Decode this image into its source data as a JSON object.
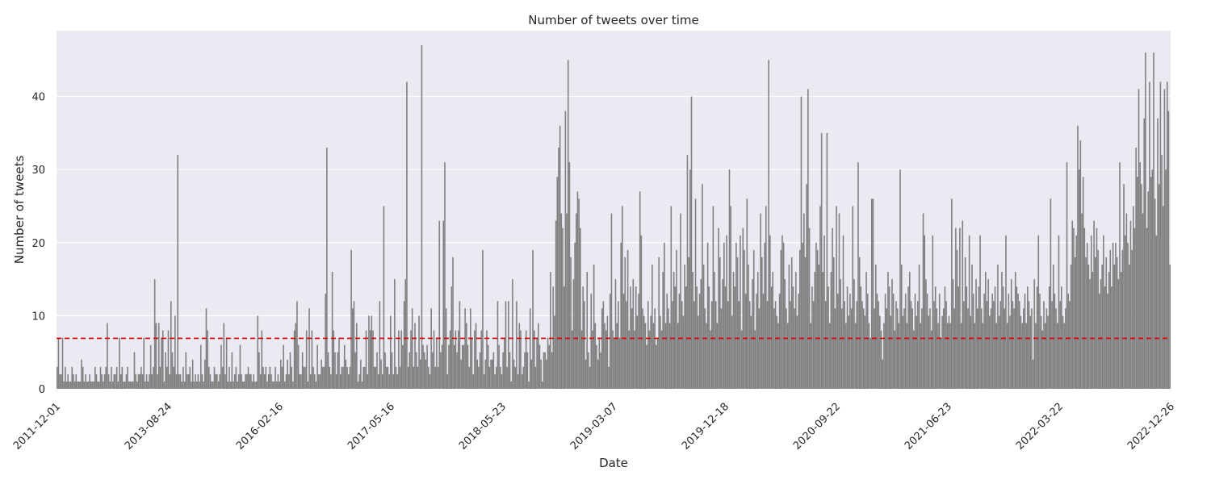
{
  "chart_data": {
    "type": "bar",
    "title": "Number of tweets over time",
    "xlabel": "Date",
    "ylabel": "Number of tweets",
    "ylim": [
      0,
      49
    ],
    "yticks": [
      0,
      10,
      20,
      30,
      40
    ],
    "grid": true,
    "categorical_x": true,
    "x_tick_labels": [
      "2011-12-01",
      "2013-08-24",
      "2016-02-16",
      "2017-05-16",
      "2018-05-23",
      "2019-03-07",
      "2019-12-18",
      "2020-09-22",
      "2021-06-23",
      "2022-03-22",
      "2022-12-26"
    ],
    "reference_line": {
      "y": 6.9,
      "style": "dashed",
      "color": "#e00000"
    },
    "bar_color": "#808080",
    "background_color": "#eaeaf2",
    "series": [
      {
        "values": [
          3,
          7,
          2,
          2,
          7,
          1,
          3,
          1,
          2,
          1,
          1,
          3,
          2,
          1,
          2,
          1,
          1,
          1,
          4,
          3,
          1,
          2,
          1,
          1,
          2,
          1,
          1,
          1,
          3,
          2,
          1,
          1,
          3,
          2,
          1,
          2,
          3,
          9,
          2,
          1,
          3,
          1,
          2,
          2,
          3,
          1,
          7,
          2,
          3,
          1,
          1,
          2,
          3,
          1,
          1,
          1,
          1,
          5,
          2,
          1,
          2,
          2,
          3,
          2,
          7,
          1,
          2,
          1,
          2,
          6,
          2,
          3,
          15,
          9,
          2,
          9,
          3,
          7,
          8,
          1,
          5,
          3,
          8,
          2,
          12,
          5,
          3,
          10,
          2,
          32,
          2,
          2,
          1,
          3,
          1,
          5,
          2,
          2,
          3,
          1,
          4,
          1,
          2,
          1,
          2,
          1,
          6,
          2,
          1,
          4,
          11,
          8,
          3,
          2,
          1,
          1,
          3,
          2,
          2,
          1,
          2,
          6,
          3,
          9,
          2,
          7,
          1,
          3,
          1,
          5,
          1,
          2,
          3,
          1,
          2,
          6,
          2,
          1,
          1,
          2,
          2,
          3,
          2,
          2,
          1,
          2,
          1,
          1,
          10,
          5,
          2,
          8,
          3,
          2,
          3,
          1,
          2,
          3,
          2,
          1,
          1,
          3,
          1,
          2,
          1,
          4,
          3,
          6,
          1,
          2,
          4,
          2,
          5,
          3,
          1,
          8,
          9,
          12,
          6,
          2,
          2,
          5,
          3,
          3,
          8,
          1,
          11,
          2,
          8,
          3,
          2,
          1,
          6,
          2,
          2,
          4,
          3,
          3,
          13,
          33,
          5,
          3,
          2,
          16,
          8,
          5,
          2,
          5,
          7,
          2,
          3,
          3,
          6,
          4,
          3,
          2,
          3,
          19,
          11,
          12,
          5,
          9,
          1,
          2,
          4,
          1,
          3,
          3,
          8,
          2,
          10,
          8,
          10,
          8,
          3,
          3,
          5,
          2,
          12,
          4,
          2,
          25,
          5,
          3,
          3,
          2,
          10,
          5,
          2,
          15,
          3,
          2,
          8,
          3,
          8,
          6,
          12,
          15,
          42,
          3,
          5,
          8,
          11,
          3,
          9,
          5,
          3,
          10,
          4,
          47,
          6,
          5,
          4,
          6,
          3,
          2,
          11,
          5,
          8,
          3,
          7,
          3,
          23,
          5,
          6,
          23,
          31,
          11,
          2,
          6,
          8,
          14,
          18,
          6,
          8,
          5,
          8,
          12,
          4,
          6,
          6,
          11,
          9,
          6,
          3,
          11,
          7,
          2,
          8,
          9,
          4,
          3,
          5,
          8,
          19,
          2,
          4,
          8,
          6,
          3,
          4,
          4,
          5,
          2,
          3,
          12,
          6,
          3,
          2,
          5,
          7,
          12,
          3,
          12,
          5,
          1,
          15,
          4,
          3,
          12,
          2,
          9,
          8,
          2,
          3,
          5,
          8,
          5,
          1,
          11,
          4,
          19,
          8,
          3,
          7,
          9,
          6,
          4,
          1,
          5,
          5,
          4,
          7,
          6,
          16,
          5,
          14,
          10,
          23,
          29,
          33,
          36,
          24,
          22,
          14,
          38,
          24,
          45,
          31,
          18,
          8,
          15,
          20,
          24,
          27,
          26,
          22,
          8,
          14,
          12,
          4,
          16,
          5,
          3,
          13,
          8,
          17,
          9,
          6,
          4,
          7,
          5,
          11,
          12,
          9,
          8,
          10,
          3,
          13,
          24,
          8,
          7,
          15,
          9,
          12,
          7,
          20,
          25,
          13,
          18,
          12,
          19,
          8,
          14,
          11,
          15,
          8,
          14,
          10,
          13,
          27,
          21,
          11,
          10,
          9,
          6,
          12,
          8,
          10,
          17,
          9,
          11,
          6,
          7,
          18,
          10,
          8,
          16,
          20,
          9,
          13,
          11,
          9,
          25,
          12,
          16,
          14,
          19,
          9,
          13,
          24,
          12,
          10,
          17,
          14,
          32,
          18,
          30,
          40,
          16,
          12,
          26,
          14,
          10,
          13,
          15,
          28,
          17,
          11,
          9,
          20,
          14,
          8,
          12,
          25,
          16,
          12,
          9,
          22,
          18,
          11,
          15,
          20,
          14,
          21,
          12,
          30,
          25,
          10,
          16,
          14,
          20,
          18,
          12,
          21,
          8,
          22,
          19,
          13,
          26,
          17,
          12,
          10,
          15,
          19,
          8,
          13,
          16,
          11,
          24,
          18,
          13,
          20,
          25,
          12,
          45,
          21,
          14,
          16,
          11,
          12,
          10,
          9,
          13,
          19,
          21,
          20,
          15,
          11,
          9,
          17,
          12,
          18,
          14,
          11,
          16,
          10,
          13,
          19,
          40,
          20,
          24,
          18,
          28,
          41,
          22,
          9,
          14,
          12,
          16,
          20,
          19,
          17,
          25,
          35,
          16,
          21,
          12,
          35,
          14,
          9,
          16,
          22,
          18,
          11,
          25,
          13,
          24,
          15,
          11,
          21,
          12,
          9,
          14,
          10,
          13,
          11,
          25,
          15,
          9,
          12,
          31,
          18,
          14,
          12,
          11,
          10,
          16,
          13,
          9,
          7,
          26,
          26,
          11,
          17,
          13,
          12,
          10,
          8,
          4,
          9,
          13,
          11,
          16,
          14,
          10,
          15,
          13,
          8,
          12,
          11,
          9,
          30,
          17,
          10,
          11,
          13,
          9,
          14,
          16,
          12,
          11,
          8,
          13,
          10,
          12,
          17,
          9,
          11,
          24,
          21,
          15,
          13,
          10,
          11,
          8,
          21,
          12,
          14,
          11,
          9,
          13,
          7,
          10,
          11,
          14,
          12,
          9,
          10,
          9,
          26,
          15,
          11,
          22,
          19,
          14,
          22,
          9,
          23,
          12,
          18,
          14,
          11,
          21,
          10,
          17,
          13,
          9,
          15,
          11,
          14,
          21,
          11,
          9,
          13,
          16,
          12,
          15,
          10,
          11,
          13,
          12,
          14,
          9,
          17,
          10,
          12,
          16,
          14,
          11,
          21,
          9,
          13,
          10,
          15,
          12,
          11,
          16,
          14,
          13,
          12,
          10,
          9,
          11,
          13,
          9,
          14,
          12,
          10,
          11,
          4,
          15,
          9,
          14,
          21,
          13,
          10,
          8,
          12,
          9,
          11,
          10,
          14,
          26,
          12,
          17,
          13,
          11,
          9,
          21,
          12,
          14,
          10,
          9,
          11,
          31,
          13,
          12,
          17,
          23,
          22,
          18,
          21,
          36,
          30,
          34,
          24,
          29,
          22,
          18,
          20,
          17,
          15,
          21,
          16,
          23,
          18,
          22,
          19,
          13,
          15,
          17,
          21,
          14,
          18,
          13,
          16,
          19,
          14,
          20,
          17,
          20,
          18,
          15,
          31,
          16,
          19,
          28,
          21,
          24,
          20,
          17,
          23,
          19,
          25,
          22,
          33,
          29,
          41,
          31,
          28,
          24,
          37,
          46,
          22,
          27,
          42,
          29,
          30,
          46,
          26,
          21,
          37,
          28,
          42,
          32,
          25,
          41,
          30,
          42,
          38,
          17
        ]
      }
    ]
  }
}
